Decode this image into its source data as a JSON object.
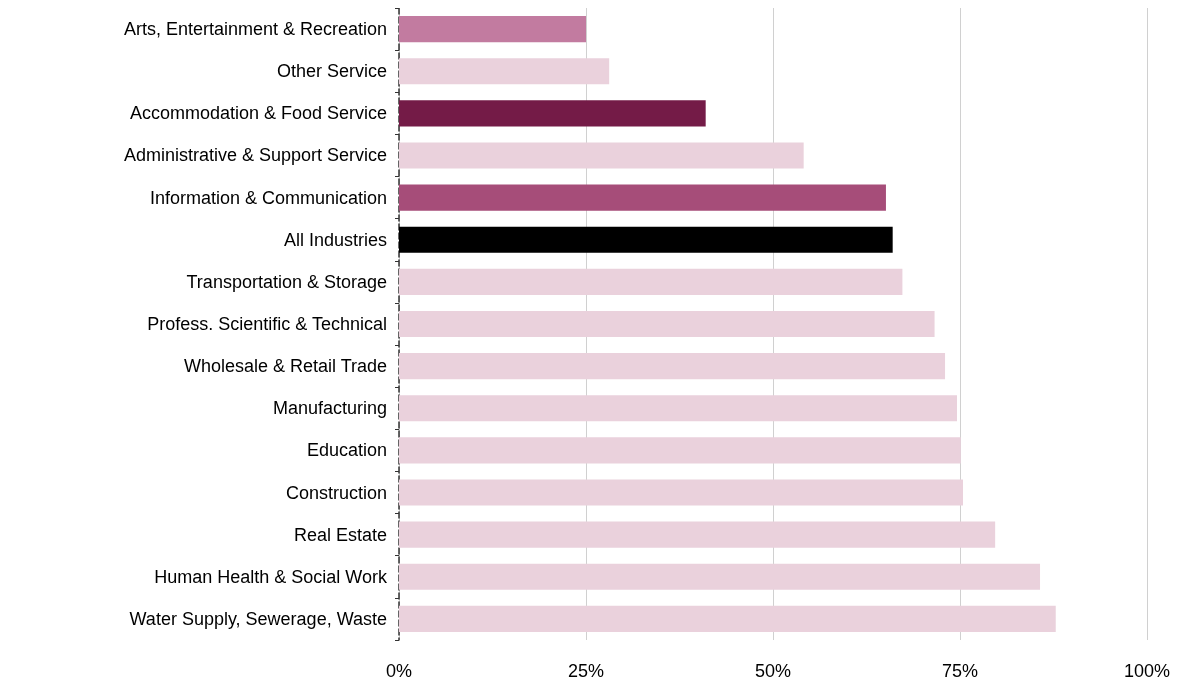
{
  "chart_data": {
    "type": "bar",
    "orientation": "horizontal",
    "categories": [
      "Arts, Entertainment & Recreation",
      "Other Service",
      "Accommodation & Food Service",
      "Administrative & Support Service",
      "Information & Communication",
      "All Industries",
      "Transportation & Storage",
      "Profess. Scientific & Technical",
      "Wholesale & Retail Trade",
      "Manufacturing",
      "Education",
      "Construction",
      "Real Estate",
      "Human Health & Social Work",
      "Water Supply, Sewerage, Waste"
    ],
    "values": [
      25.0,
      28.1,
      41.0,
      54.1,
      65.1,
      66.0,
      67.3,
      71.6,
      73.0,
      74.6,
      75.1,
      75.4,
      79.7,
      85.7,
      87.8
    ],
    "colors": [
      "#c27ba0",
      "#ead1dc",
      "#741b47",
      "#ead1dc",
      "#a64d79",
      "#000000",
      "#ead1dc",
      "#ead1dc",
      "#ead1dc",
      "#ead1dc",
      "#ead1dc",
      "#ead1dc",
      "#ead1dc",
      "#ead1dc",
      "#ead1dc"
    ],
    "xlim": [
      0,
      100
    ],
    "xticks": [
      {
        "value": 0,
        "label": "0%"
      },
      {
        "value": 25,
        "label": "25%"
      },
      {
        "value": 50,
        "label": "50%"
      },
      {
        "value": 75,
        "label": "75%"
      },
      {
        "value": 100,
        "label": "100%"
      }
    ],
    "grid": "x"
  }
}
